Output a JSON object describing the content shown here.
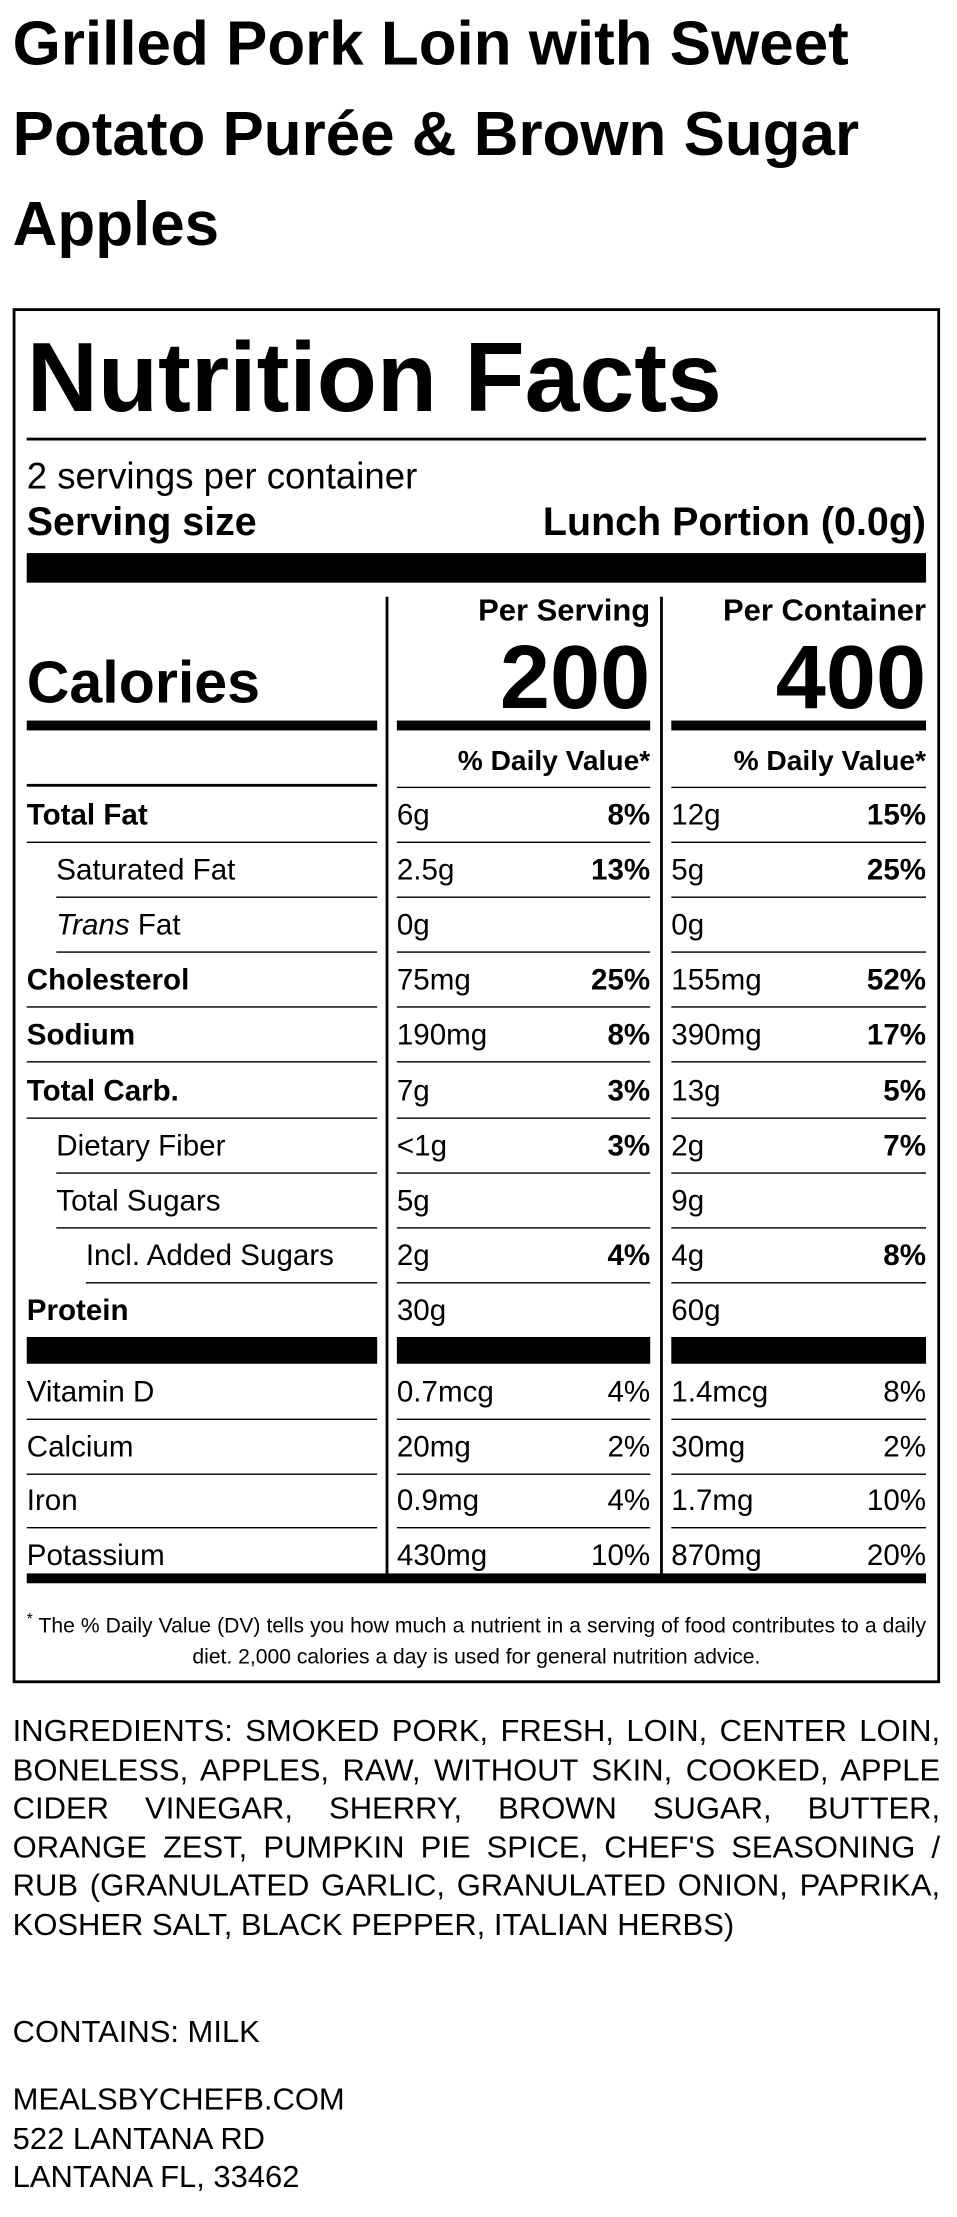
{
  "title": "Grilled Pork Loin with Sweet Potato Purée & Brown Sugar Apples",
  "panel": {
    "heading": "Nutrition Facts",
    "servings": "2 servings per container",
    "serving_size_label": "Serving size",
    "serving_size_value": "Lunch Portion (0.0g)",
    "calories_label": "Calories",
    "columns": [
      {
        "header": "Per Serving",
        "calories": 200,
        "dv_header": "% Daily Value*"
      },
      {
        "header": "Per Container",
        "calories": 400,
        "dv_header": "% Daily Value*"
      }
    ],
    "nutrients": [
      {
        "name": "Total Fat",
        "bold": true,
        "indent": 0,
        "values": [
          [
            "6g",
            "8%"
          ],
          [
            "12g",
            "15%"
          ]
        ]
      },
      {
        "name": "Saturated Fat",
        "bold": false,
        "indent": 1,
        "values": [
          [
            "2.5g",
            "13%"
          ],
          [
            "5g",
            "25%"
          ]
        ]
      },
      {
        "name_italic": "Trans",
        "name": "Fat",
        "bold": false,
        "indent": 1,
        "values": [
          [
            "0g",
            null
          ],
          [
            "0g",
            null
          ]
        ]
      },
      {
        "name": "Cholesterol",
        "bold": true,
        "indent": 0,
        "values": [
          [
            "75mg",
            "25%"
          ],
          [
            "155mg",
            "52%"
          ]
        ]
      },
      {
        "name": "Sodium",
        "bold": true,
        "indent": 0,
        "values": [
          [
            "190mg",
            "8%"
          ],
          [
            "390mg",
            "17%"
          ]
        ]
      },
      {
        "name": "Total Carb.",
        "bold": true,
        "indent": 0,
        "values": [
          [
            "7g",
            "3%"
          ],
          [
            "13g",
            "5%"
          ]
        ]
      },
      {
        "name": "Dietary Fiber",
        "bold": false,
        "indent": 1,
        "values": [
          [
            "<1g",
            "3%"
          ],
          [
            "2g",
            "7%"
          ]
        ]
      },
      {
        "name": "Total Sugars",
        "bold": false,
        "indent": 1,
        "values": [
          [
            "5g",
            null
          ],
          [
            "9g",
            null
          ]
        ]
      },
      {
        "name": "Incl. Added Sugars",
        "bold": false,
        "indent": 2,
        "values": [
          [
            "2g",
            "4%"
          ],
          [
            "4g",
            "8%"
          ]
        ]
      },
      {
        "name": "Protein",
        "bold": true,
        "indent": 0,
        "values": [
          [
            "30g",
            null
          ],
          [
            "60g",
            null
          ]
        ]
      }
    ],
    "vitamins": [
      {
        "name": "Vitamin D",
        "values": [
          [
            "0.7mcg",
            "4%"
          ],
          [
            "1.4mcg",
            "8%"
          ]
        ]
      },
      {
        "name": "Calcium",
        "values": [
          [
            "20mg",
            "2%"
          ],
          [
            "30mg",
            "2%"
          ]
        ]
      },
      {
        "name": "Iron",
        "values": [
          [
            "0.9mg",
            "4%"
          ],
          [
            "1.7mg",
            "10%"
          ]
        ]
      },
      {
        "name": "Potassium",
        "values": [
          [
            "430mg",
            "10%"
          ],
          [
            "870mg",
            "20%"
          ]
        ]
      }
    ],
    "footnote_mark": "*",
    "footnote": "The % Daily Value (DV) tells you how much a nutrient in a serving of food contributes to a daily diet. 2,000 calories a day is used for general nutrition advice."
  },
  "ingredients": "INGREDIENTS: SMOKED PORK, FRESH, LOIN, CENTER LOIN, BONELESS, APPLES, RAW, WITHOUT SKIN, COOKED, APPLE CIDER VINEGAR, SHERRY, BROWN SUGAR, BUTTER, ORANGE ZEST, PUMPKIN PIE SPICE, CHEF'S SEASONING / RUB (GRANULATED GARLIC, GRANULATED ONION, PAPRIKA, KOSHER SALT, BLACK PEPPER, ITALIAN HERBS)",
  "contains": "CONTAINS: MILK",
  "address": [
    "MEALSBYCHEFB.COM",
    "522 LANTANA RD",
    "LANTANA FL, 33462"
  ]
}
